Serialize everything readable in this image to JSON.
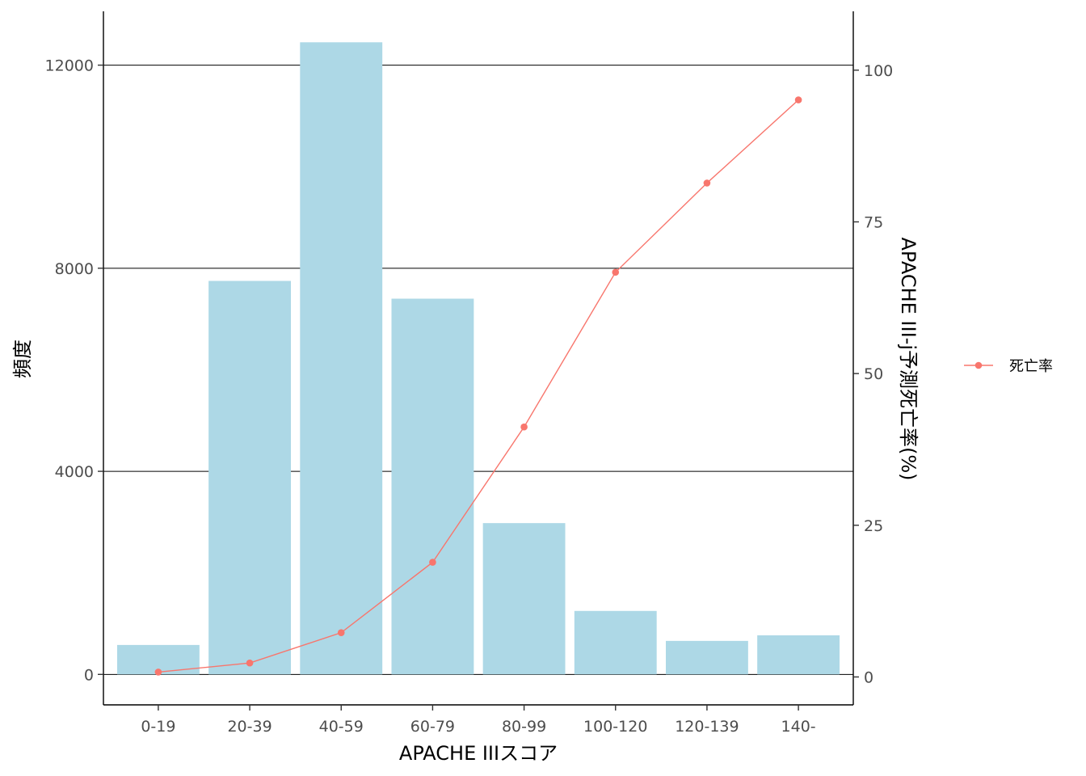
{
  "chart_data": {
    "type": "bar",
    "categories": [
      "0-19",
      "20-39",
      "40-59",
      "60-79",
      "80-99",
      "100-120",
      "120-139",
      "140-"
    ],
    "values": [
      580,
      7750,
      12450,
      7400,
      2980,
      1250,
      660,
      770
    ],
    "xlabel": "APACHE IIIスコア",
    "ylabel": "頻度",
    "ylim": [
      -600,
      13060
    ],
    "yticks": [
      0,
      4000,
      8000,
      12000
    ],
    "ytick_labels": [
      "0",
      "4000",
      "8000",
      "12000"
    ],
    "grid": "horizontal major lines",
    "bar_color": "#add8e6",
    "secondary_axis": {
      "label": "APACHE III-j予測死亡率(%)",
      "ylim": [
        -4.6,
        109.7
      ],
      "ticks": [
        0,
        25,
        50,
        75,
        100
      ],
      "tick_labels": [
        "0",
        "25",
        "50",
        "75",
        "100"
      ]
    },
    "series": [
      {
        "name": "死亡率",
        "type": "line",
        "axis": "secondary",
        "color": "#f8766d",
        "values": [
          0.8,
          2.3,
          7.3,
          18.9,
          41.2,
          66.7,
          81.4,
          95.1
        ]
      }
    ],
    "legend": {
      "placement": "right"
    }
  }
}
